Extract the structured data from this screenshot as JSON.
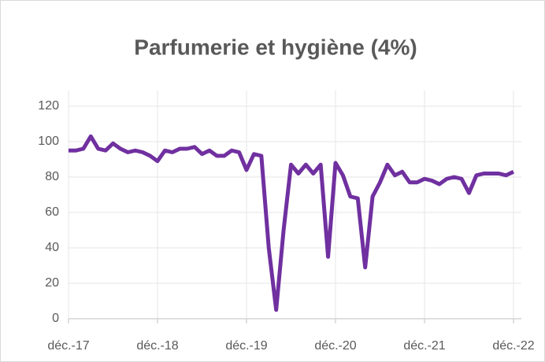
{
  "chart_data": {
    "type": "line",
    "title": "Parfumerie et hygiène (4%)",
    "categories": [
      "déc.-17",
      null,
      null,
      null,
      null,
      null,
      null,
      null,
      null,
      null,
      null,
      null,
      "déc.-18",
      null,
      null,
      null,
      null,
      null,
      null,
      null,
      null,
      null,
      null,
      null,
      "déc.-19",
      null,
      null,
      null,
      null,
      null,
      null,
      null,
      null,
      null,
      null,
      null,
      "déc.-20",
      null,
      null,
      null,
      null,
      null,
      null,
      null,
      null,
      null,
      null,
      null,
      "déc.-21",
      null,
      null,
      null,
      null,
      null,
      null,
      null,
      null,
      null,
      null,
      null,
      "déc.-22"
    ],
    "series": [
      {
        "name": "Parfumerie et hygiène",
        "color": "#7030a0",
        "values": [
          95,
          95,
          96,
          103,
          96,
          95,
          99,
          96,
          94,
          95,
          94,
          92,
          89,
          95,
          94,
          96,
          96,
          97,
          93,
          95,
          92,
          92,
          95,
          94,
          84,
          93,
          92,
          40,
          5,
          50,
          87,
          82,
          87,
          82,
          87,
          35,
          88,
          81,
          69,
          68,
          29,
          69,
          77,
          87,
          81,
          83,
          77,
          77,
          79,
          78,
          76,
          79,
          80,
          79,
          71,
          81,
          82,
          82,
          82,
          81,
          83
        ]
      }
    ],
    "ylim": [
      0,
      120
    ],
    "yticks": [
      0,
      20,
      40,
      60,
      80,
      100,
      120
    ],
    "grid": true
  }
}
